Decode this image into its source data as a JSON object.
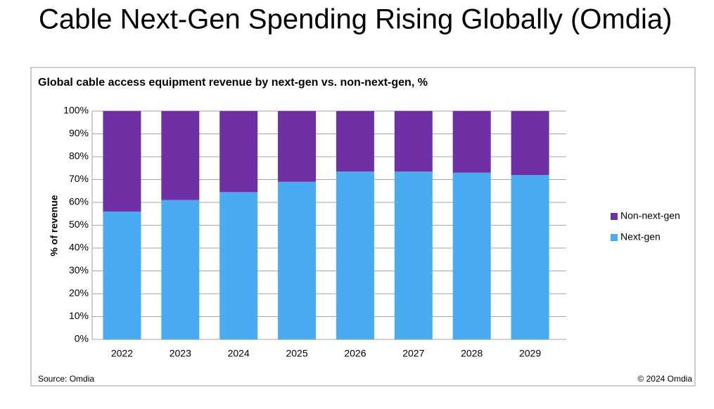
{
  "heading": "Cable Next-Gen Spending Rising Globally (Omdia)",
  "source": "Source: Omdia",
  "copyright": "© 2024 Omdia",
  "chart_data": {
    "type": "stacked-bar",
    "title": "Global cable access equipment revenue by next-gen vs. non-next-gen, %",
    "ylabel": "% of revenue",
    "categories": [
      "2022",
      "2023",
      "2024",
      "2025",
      "2026",
      "2027",
      "2028",
      "2029"
    ],
    "series": [
      {
        "name": "Next-gen",
        "color": "#4aabf2",
        "values": [
          56,
          61,
          64.5,
          69,
          73.5,
          73.5,
          73,
          72
        ]
      },
      {
        "name": "Non-next-gen",
        "color": "#7030a5",
        "values": [
          44,
          39,
          35.5,
          31,
          26.5,
          26.5,
          27,
          28
        ]
      }
    ],
    "ylim": [
      0,
      100
    ],
    "yticks": [
      {
        "value": 0,
        "label": "0%"
      },
      {
        "value": 10,
        "label": "10%"
      },
      {
        "value": 20,
        "label": "20%"
      },
      {
        "value": 30,
        "label": "30%"
      },
      {
        "value": 40,
        "label": "40%"
      },
      {
        "value": 50,
        "label": "50%"
      },
      {
        "value": 60,
        "label": "60%"
      },
      {
        "value": 70,
        "label": "70%"
      },
      {
        "value": 80,
        "label": "80%"
      },
      {
        "value": 90,
        "label": "90%"
      },
      {
        "value": 100,
        "label": "100%"
      }
    ],
    "grid": true,
    "legend": "right"
  }
}
